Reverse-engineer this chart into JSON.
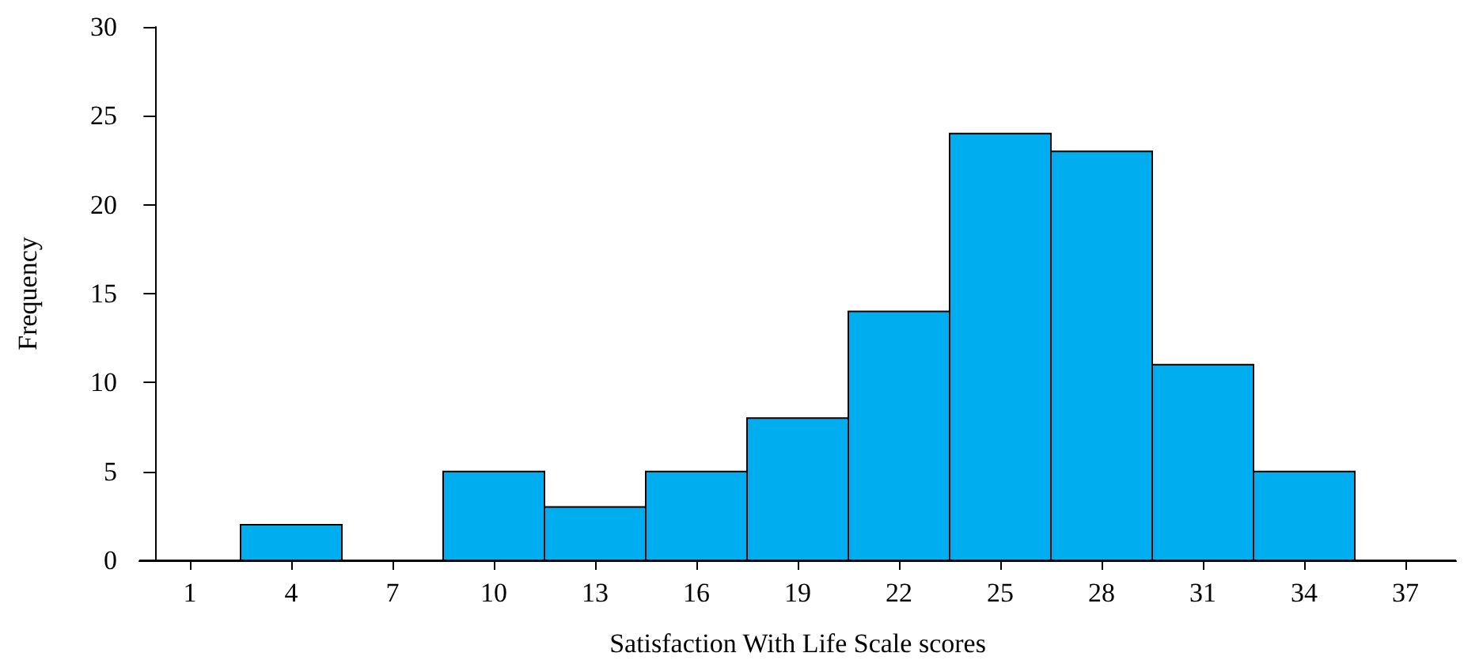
{
  "chart_data": {
    "type": "histogram",
    "xlabel": "Satisfaction With Life Scale scores",
    "ylabel": "Frequency",
    "bins": [
      -0.5,
      2.5,
      5.5,
      8.5,
      11.5,
      14.5,
      17.5,
      20.5,
      23.5,
      26.5,
      29.5,
      32.5,
      35.5,
      38.5
    ],
    "values": [
      0,
      2,
      0,
      5,
      3,
      5,
      8,
      14,
      24,
      23,
      11,
      5,
      0
    ],
    "color": "#00aeef",
    "xlim": [
      -0.5,
      38.5
    ],
    "xticks": [
      1,
      4,
      7,
      10,
      13,
      16,
      19,
      22,
      25,
      28,
      31,
      34,
      37
    ],
    "ylim": [
      0,
      30
    ],
    "yticks": [
      0,
      5,
      10,
      15,
      20,
      25,
      30
    ],
    "grid": false
  }
}
